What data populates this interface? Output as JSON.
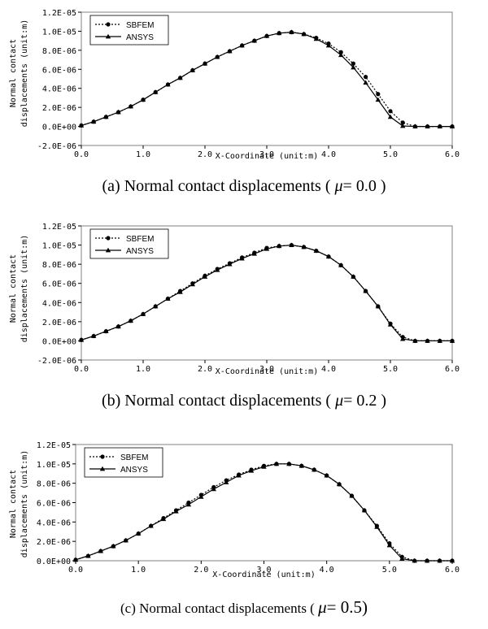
{
  "chart_data": [
    {
      "type": "line",
      "caption": {
        "prefix": "(a) Normal contact displacements ( ",
        "mu": "μ",
        "suffix": "= 0.0 )"
      },
      "xlabel": "X-Coordinate (unit:m)",
      "ylabel": [
        "Normal contact",
        "displacements (unit:m)"
      ],
      "xlim": [
        0,
        6
      ],
      "ylim": [
        -2e-06,
        1.2e-05
      ],
      "x_ticks": [
        "0.0",
        "1.0",
        "2.0",
        "3.0",
        "4.0",
        "5.0",
        "6.0"
      ],
      "y_ticks": [
        "-2.0E-06",
        "0.0E+00",
        "2.0E-06",
        "4.0E-06",
        "6.0E-06",
        "8.0E-06",
        "1.0E-05",
        "1.2E-05"
      ],
      "grid": false,
      "legend": "top-left",
      "series": [
        {
          "name": "SBFEM",
          "style": "dotted",
          "marker": "circle",
          "x": [
            0.0,
            0.2,
            0.4,
            0.6,
            0.8,
            1.0,
            1.2,
            1.4,
            1.6,
            1.8,
            2.0,
            2.2,
            2.4,
            2.6,
            2.8,
            3.0,
            3.2,
            3.4,
            3.6,
            3.8,
            4.0,
            4.2,
            4.4,
            4.6,
            4.8,
            5.0,
            5.2,
            5.4,
            5.6,
            5.8,
            6.0
          ],
          "y": [
            1e-07,
            5e-07,
            1e-06,
            1.5e-06,
            2.1e-06,
            2.8e-06,
            3.6e-06,
            4.4e-06,
            5.1e-06,
            5.9e-06,
            6.6e-06,
            7.3e-06,
            7.9e-06,
            8.5e-06,
            9e-06,
            9.5e-06,
            9.8e-06,
            9.9e-06,
            9.7e-06,
            9.3e-06,
            8.7e-06,
            7.8e-06,
            6.6e-06,
            5.2e-06,
            3.4e-06,
            1.6e-06,
            4e-07,
            0.0,
            0.0,
            0.0,
            0.0
          ]
        },
        {
          "name": "ANSYS",
          "style": "solid",
          "marker": "triangle",
          "x": [
            0.0,
            0.2,
            0.4,
            0.6,
            0.8,
            1.0,
            1.2,
            1.4,
            1.6,
            1.8,
            2.0,
            2.2,
            2.4,
            2.6,
            2.8,
            3.0,
            3.2,
            3.4,
            3.6,
            3.8,
            4.0,
            4.2,
            4.4,
            4.6,
            4.8,
            5.0,
            5.2,
            5.4,
            5.6,
            5.8,
            6.0
          ],
          "y": [
            1e-07,
            5e-07,
            1e-06,
            1.5e-06,
            2.1e-06,
            2.8e-06,
            3.6e-06,
            4.4e-06,
            5.1e-06,
            5.9e-06,
            6.6e-06,
            7.3e-06,
            7.9e-06,
            8.5e-06,
            9e-06,
            9.5e-06,
            9.8e-06,
            9.9e-06,
            9.7e-06,
            9.2e-06,
            8.5e-06,
            7.5e-06,
            6.2e-06,
            4.6e-06,
            2.8e-06,
            1e-06,
            5e-08,
            0.0,
            0.0,
            0.0,
            0.0
          ]
        }
      ]
    },
    {
      "type": "line",
      "caption": {
        "prefix": "(b) Normal contact displacements ( ",
        "mu": "μ",
        "suffix": "= 0.2 )"
      },
      "xlabel": "X-Coordinate (unit:m)",
      "ylabel": [
        "Normal contact",
        "displacements (unit:m)"
      ],
      "xlim": [
        0,
        6
      ],
      "ylim": [
        -2e-06,
        1.2e-05
      ],
      "x_ticks": [
        "0.0",
        "1.0",
        "2.0",
        "3.0",
        "4.0",
        "5.0",
        "6.0"
      ],
      "y_ticks": [
        "-2.0E-06",
        "0.0E+00",
        "2.0E-06",
        "4.0E-06",
        "6.0E-06",
        "8.0E-06",
        "1.0E-05",
        "1.2E-05"
      ],
      "grid": false,
      "legend": "top-left",
      "series": [
        {
          "name": "SBFEM",
          "style": "dotted",
          "marker": "circle",
          "x": [
            0.0,
            0.2,
            0.4,
            0.6,
            0.8,
            1.0,
            1.2,
            1.4,
            1.6,
            1.8,
            2.0,
            2.2,
            2.4,
            2.6,
            2.8,
            3.0,
            3.2,
            3.4,
            3.6,
            3.8,
            4.0,
            4.2,
            4.4,
            4.6,
            4.8,
            5.0,
            5.2,
            5.4,
            5.6,
            5.8,
            6.0
          ],
          "y": [
            1e-07,
            5e-07,
            1e-06,
            1.5e-06,
            2.1e-06,
            2.8e-06,
            3.6e-06,
            4.4e-06,
            5.2e-06,
            6e-06,
            6.8e-06,
            7.5e-06,
            8.1e-06,
            8.7e-06,
            9.2e-06,
            9.7e-06,
            9.9e-06,
            1e-05,
            9.8e-06,
            9.4e-06,
            8.8e-06,
            7.9e-06,
            6.7e-06,
            5.2e-06,
            3.6e-06,
            1.8e-06,
            4e-07,
            0.0,
            0.0,
            0.0,
            0.0
          ]
        },
        {
          "name": "ANSYS",
          "style": "solid",
          "marker": "triangle",
          "x": [
            0.0,
            0.2,
            0.4,
            0.6,
            0.8,
            1.0,
            1.2,
            1.4,
            1.6,
            1.8,
            2.0,
            2.2,
            2.4,
            2.6,
            2.8,
            3.0,
            3.2,
            3.4,
            3.6,
            3.8,
            4.0,
            4.2,
            4.4,
            4.6,
            4.8,
            5.0,
            5.2,
            5.4,
            5.6,
            5.8,
            6.0
          ],
          "y": [
            1e-07,
            5e-07,
            1e-06,
            1.5e-06,
            2.1e-06,
            2.8e-06,
            3.6e-06,
            4.4e-06,
            5.1e-06,
            5.9e-06,
            6.7e-06,
            7.4e-06,
            8e-06,
            8.6e-06,
            9.1e-06,
            9.6e-06,
            9.9e-06,
            1e-05,
            9.8e-06,
            9.4e-06,
            8.8e-06,
            7.9e-06,
            6.7e-06,
            5.2e-06,
            3.6e-06,
            1.7e-06,
            2e-07,
            0.0,
            0.0,
            0.0,
            0.0
          ]
        }
      ]
    },
    {
      "type": "line",
      "caption": {
        "prefix": "(c) Normal contact displacements ( ",
        "mu": "μ",
        "suffix": "= 0.5)"
      },
      "xlabel": "X-Coordinate (unit:m)",
      "ylabel": [
        "Normal contact",
        "displacements (unit:m)"
      ],
      "xlim": [
        0,
        6
      ],
      "ylim": [
        0,
        1.2e-05
      ],
      "x_ticks": [
        "0.0",
        "1.0",
        "2.0",
        "3.0",
        "4.0",
        "5.0",
        "6.0"
      ],
      "y_ticks": [
        "0.0E+00",
        "2.0E-06",
        "4.0E-06",
        "6.0E-06",
        "8.0E-06",
        "1.0E-05",
        "1.2E-05"
      ],
      "grid": false,
      "legend": "top-left",
      "series": [
        {
          "name": "SBFEM",
          "style": "dotted",
          "marker": "circle",
          "x": [
            0.0,
            0.2,
            0.4,
            0.6,
            0.8,
            1.0,
            1.2,
            1.4,
            1.6,
            1.8,
            2.0,
            2.2,
            2.4,
            2.6,
            2.8,
            3.0,
            3.2,
            3.4,
            3.6,
            3.8,
            4.0,
            4.2,
            4.4,
            4.6,
            4.8,
            5.0,
            5.2,
            5.4,
            5.6,
            5.8,
            6.0
          ],
          "y": [
            1e-07,
            5e-07,
            1e-06,
            1.5e-06,
            2.1e-06,
            2.8e-06,
            3.6e-06,
            4.4e-06,
            5.2e-06,
            6e-06,
            6.8e-06,
            7.6e-06,
            8.3e-06,
            8.9e-06,
            9.4e-06,
            9.8e-06,
            1e-05,
            1e-05,
            9.8e-06,
            9.4e-06,
            8.8e-06,
            7.9e-06,
            6.7e-06,
            5.2e-06,
            3.6e-06,
            1.8e-06,
            4e-07,
            0.0,
            0.0,
            0.0,
            0.0
          ]
        },
        {
          "name": "ANSYS",
          "style": "solid",
          "marker": "triangle",
          "x": [
            0.0,
            0.2,
            0.4,
            0.6,
            0.8,
            1.0,
            1.2,
            1.4,
            1.6,
            1.8,
            2.0,
            2.2,
            2.4,
            2.6,
            2.8,
            3.0,
            3.2,
            3.4,
            3.6,
            3.8,
            4.0,
            4.2,
            4.4,
            4.6,
            4.8,
            5.0,
            5.2,
            5.4,
            5.6,
            5.8,
            6.0
          ],
          "y": [
            1e-07,
            5e-07,
            1e-06,
            1.5e-06,
            2.1e-06,
            2.8e-06,
            3.6e-06,
            4.3e-06,
            5.1e-06,
            5.8e-06,
            6.6e-06,
            7.4e-06,
            8.1e-06,
            8.8e-06,
            9.3e-06,
            9.7e-06,
            1e-05,
            1e-05,
            9.8e-06,
            9.4e-06,
            8.8e-06,
            7.9e-06,
            6.7e-06,
            5.2e-06,
            3.5e-06,
            1.6e-06,
            2e-07,
            0.0,
            0.0,
            0.0,
            0.0
          ]
        }
      ]
    }
  ]
}
